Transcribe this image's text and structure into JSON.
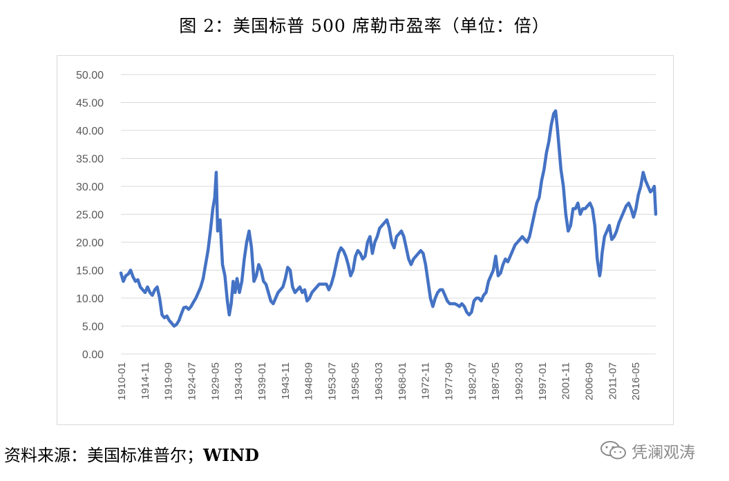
{
  "title": "图 2：美国标普 500 席勒市盈率（单位：倍）",
  "source": {
    "label": "资料来源：美国标准普尔；",
    "wind": "WIND"
  },
  "watermark": {
    "text": "凭澜观涛",
    "icon": "wechat-icon"
  },
  "colors": {
    "line": "#4472c4",
    "grid": "#d9d9d9",
    "axis_text": "#595959"
  },
  "chart_data": {
    "type": "line",
    "title": "图 2：美国标普 500 席勒市盈率（单位：倍）",
    "xlabel": "",
    "ylabel": "",
    "ylim": [
      0,
      50
    ],
    "yticks": [
      "0.00",
      "5.00",
      "10.00",
      "15.00",
      "20.00",
      "25.00",
      "30.00",
      "35.00",
      "40.00",
      "45.00",
      "50.00"
    ],
    "xticks": [
      "1910-01",
      "1914-11",
      "1919-09",
      "1924-07",
      "1929-05",
      "1934-03",
      "1939-01",
      "1943-11",
      "1948-09",
      "1953-07",
      "1958-05",
      "1963-03",
      "1968-01",
      "1972-11",
      "1977-09",
      "1982-07",
      "1987-05",
      "1992-03",
      "1997-01",
      "2001-11",
      "2006-09",
      "2011-07",
      "2016-05"
    ],
    "xlim": [
      1910.0,
      2020.6
    ],
    "grid": true,
    "legend": "none",
    "series": [
      {
        "x": [
          1910.0,
          1910.5,
          1911.0,
          1911.5,
          1912.0,
          1912.5,
          1913.0,
          1913.5,
          1914.0,
          1914.5,
          1915.0,
          1915.5,
          1916.0,
          1916.5,
          1917.0,
          1917.5,
          1918.0,
          1918.5,
          1919.0,
          1919.5,
          1920.0,
          1920.5,
          1921.0,
          1921.5,
          1922.0,
          1922.5,
          1923.0,
          1923.5,
          1924.0,
          1924.5,
          1925.0,
          1925.5,
          1926.0,
          1926.5,
          1927.0,
          1927.5,
          1928.0,
          1928.5,
          1929.0,
          1929.4,
          1929.7,
          1930.0,
          1930.5,
          1931.0,
          1931.5,
          1932.0,
          1932.4,
          1932.8,
          1933.2,
          1933.6,
          1934.0,
          1934.5,
          1935.0,
          1935.5,
          1936.0,
          1936.5,
          1937.0,
          1937.5,
          1938.0,
          1938.5,
          1939.0,
          1939.5,
          1940.0,
          1940.5,
          1941.0,
          1941.5,
          1942.0,
          1942.5,
          1943.0,
          1943.5,
          1944.0,
          1944.5,
          1945.0,
          1945.5,
          1946.0,
          1946.5,
          1947.0,
          1947.5,
          1948.0,
          1948.5,
          1949.0,
          1949.5,
          1950.0,
          1950.5,
          1951.0,
          1951.5,
          1952.0,
          1952.5,
          1953.0,
          1953.5,
          1954.0,
          1954.5,
          1955.0,
          1955.5,
          1956.0,
          1956.5,
          1957.0,
          1957.5,
          1958.0,
          1958.5,
          1959.0,
          1959.5,
          1960.0,
          1960.5,
          1961.0,
          1961.5,
          1962.0,
          1962.5,
          1963.0,
          1963.5,
          1964.0,
          1964.5,
          1965.0,
          1965.5,
          1966.0,
          1966.5,
          1967.0,
          1967.5,
          1968.0,
          1968.5,
          1969.0,
          1969.5,
          1970.0,
          1970.5,
          1971.0,
          1971.5,
          1972.0,
          1972.5,
          1973.0,
          1973.5,
          1974.0,
          1974.5,
          1975.0,
          1975.5,
          1976.0,
          1976.5,
          1977.0,
          1977.5,
          1978.0,
          1978.5,
          1979.0,
          1979.5,
          1980.0,
          1980.5,
          1981.0,
          1981.5,
          1982.0,
          1982.5,
          1983.0,
          1983.5,
          1984.0,
          1984.5,
          1985.0,
          1985.5,
          1986.0,
          1986.5,
          1987.0,
          1987.5,
          1988.0,
          1988.5,
          1989.0,
          1989.5,
          1990.0,
          1990.5,
          1991.0,
          1991.5,
          1992.0,
          1992.5,
          1993.0,
          1993.5,
          1994.0,
          1994.5,
          1995.0,
          1995.5,
          1996.0,
          1996.5,
          1997.0,
          1997.5,
          1998.0,
          1998.5,
          1999.0,
          1999.5,
          1999.9,
          2000.3,
          2000.7,
          2001.0,
          2001.5,
          2002.0,
          2002.5,
          2003.0,
          2003.5,
          2004.0,
          2004.5,
          2005.0,
          2005.5,
          2006.0,
          2006.5,
          2007.0,
          2007.5,
          2008.0,
          2008.5,
          2009.0,
          2009.2,
          2009.5,
          2010.0,
          2010.5,
          2011.0,
          2011.5,
          2012.0,
          2012.5,
          2013.0,
          2013.5,
          2014.0,
          2014.5,
          2015.0,
          2015.5,
          2016.0,
          2016.5,
          2017.0,
          2017.5,
          2018.0,
          2018.5,
          2019.0,
          2019.5,
          2020.0,
          2020.3,
          2020.6
        ],
        "values": [
          14.5,
          13.0,
          14.0,
          14.3,
          15.0,
          13.8,
          13.0,
          13.3,
          12.0,
          11.5,
          11.0,
          12.0,
          11.0,
          10.5,
          11.5,
          12.0,
          10.0,
          7.0,
          6.5,
          6.8,
          6.0,
          5.5,
          5.0,
          5.3,
          6.0,
          7.2,
          8.3,
          8.4,
          8.0,
          8.5,
          9.3,
          10.0,
          11.0,
          12.0,
          13.5,
          16.0,
          18.5,
          22.0,
          26.0,
          28.0,
          32.5,
          22.0,
          24.0,
          16.0,
          14.0,
          9.5,
          7.0,
          9.0,
          13.0,
          11.0,
          13.5,
          11.0,
          13.0,
          17.0,
          20.0,
          22.0,
          19.0,
          13.0,
          14.0,
          16.0,
          15.0,
          13.0,
          12.5,
          11.0,
          9.5,
          9.0,
          10.0,
          11.0,
          11.5,
          12.0,
          13.5,
          15.5,
          15.0,
          12.0,
          11.0,
          11.5,
          12.0,
          11.0,
          11.5,
          9.5,
          10.0,
          11.0,
          11.5,
          12.0,
          12.5,
          12.5,
          12.5,
          12.5,
          11.5,
          12.5,
          14.0,
          16.0,
          18.0,
          19.0,
          18.5,
          17.5,
          16.0,
          14.0,
          15.0,
          17.5,
          18.5,
          18.0,
          17.0,
          17.5,
          20.0,
          21.0,
          18.0,
          20.0,
          21.0,
          22.5,
          23.0,
          23.5,
          24.0,
          22.5,
          20.0,
          19.0,
          21.0,
          21.5,
          22.0,
          21.0,
          19.0,
          17.0,
          16.0,
          17.0,
          17.5,
          18.0,
          18.5,
          18.0,
          16.0,
          13.0,
          10.0,
          8.5,
          10.0,
          11.0,
          11.5,
          11.5,
          10.5,
          9.5,
          9.0,
          9.0,
          9.0,
          8.8,
          8.5,
          9.0,
          8.5,
          7.5,
          7.0,
          7.5,
          9.5,
          10.0,
          10.0,
          9.5,
          10.5,
          11.0,
          13.0,
          14.0,
          15.0,
          17.5,
          14.0,
          14.5,
          16.0,
          17.0,
          16.5,
          17.5,
          18.5,
          19.5,
          20.0,
          20.5,
          21.0,
          20.5,
          20.0,
          21.0,
          23.0,
          25.0,
          27.0,
          28.0,
          31.0,
          33.0,
          36.0,
          38.0,
          41.0,
          43.0,
          43.5,
          40.0,
          36.0,
          33.0,
          30.0,
          25.0,
          22.0,
          23.0,
          26.0,
          26.0,
          27.0,
          25.0,
          26.0,
          26.0,
          26.5,
          27.0,
          26.0,
          23.0,
          17.0,
          14.0,
          15.0,
          18.0,
          21.0,
          22.0,
          23.0,
          20.5,
          21.0,
          22.0,
          23.5,
          24.5,
          25.5,
          26.5,
          27.0,
          26.0,
          24.5,
          26.0,
          28.5,
          30.0,
          32.5,
          31.0,
          30.0,
          29.0,
          29.5,
          30.0,
          25.0
        ]
      }
    ]
  }
}
